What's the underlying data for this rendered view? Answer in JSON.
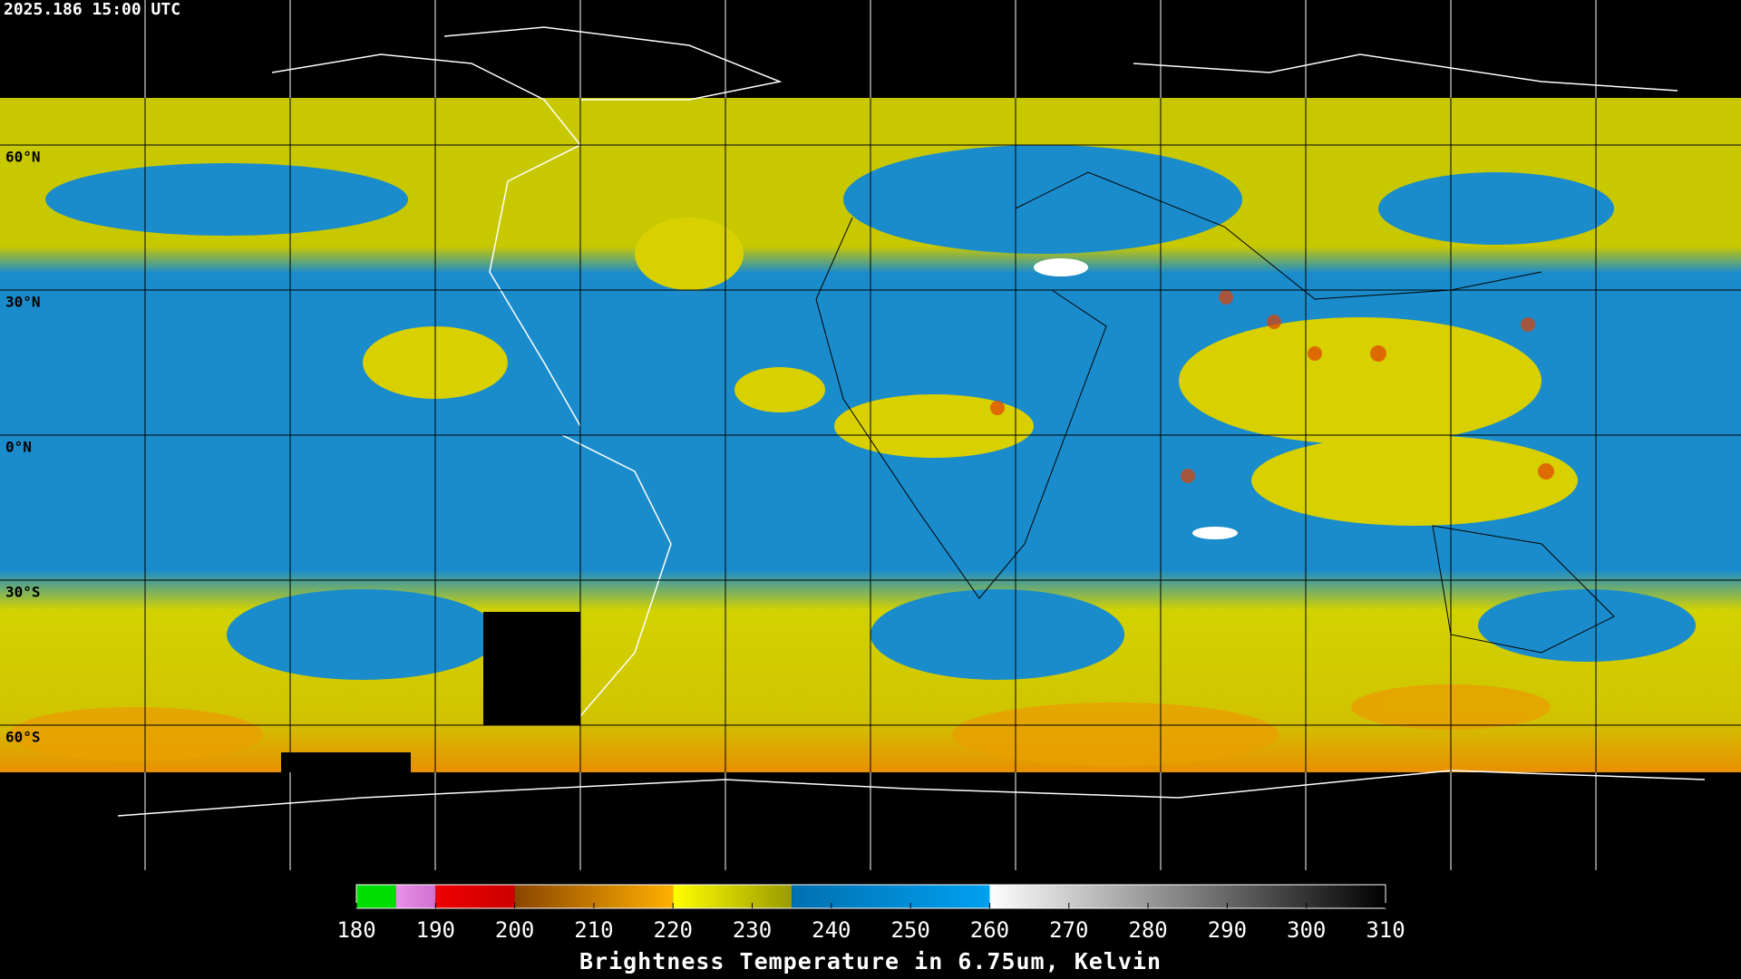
{
  "timestamp": "2025.186 15:00 UTC",
  "lat_labels": [
    "60°N",
    "30°N",
    "0°N",
    "30°S",
    "60°S"
  ],
  "colorbar": {
    "title": "Brightness Temperature in 6.75um, Kelvin",
    "lim": [
      180,
      310
    ],
    "ticks": [
      180,
      190,
      200,
      210,
      220,
      230,
      240,
      250,
      260,
      270,
      280,
      290,
      300,
      310
    ],
    "segments": [
      {
        "from": 180,
        "to": 185,
        "colors": [
          "#00dd00",
          "#00dd00"
        ]
      },
      {
        "from": 185,
        "to": 190,
        "colors": [
          "#e890e8",
          "#d070d0"
        ]
      },
      {
        "from": 190,
        "to": 200,
        "colors": [
          "#ee0000",
          "#cc0000"
        ]
      },
      {
        "from": 200,
        "to": 220,
        "colors": [
          "#8a4500",
          "#ffb000"
        ]
      },
      {
        "from": 220,
        "to": 235,
        "colors": [
          "#ffff00",
          "#9a9a00"
        ]
      },
      {
        "from": 235,
        "to": 260,
        "colors": [
          "#0070b0",
          "#00a0f0"
        ]
      },
      {
        "from": 260,
        "to": 310,
        "colors": [
          "#ffffff",
          "#000000"
        ]
      }
    ]
  }
}
